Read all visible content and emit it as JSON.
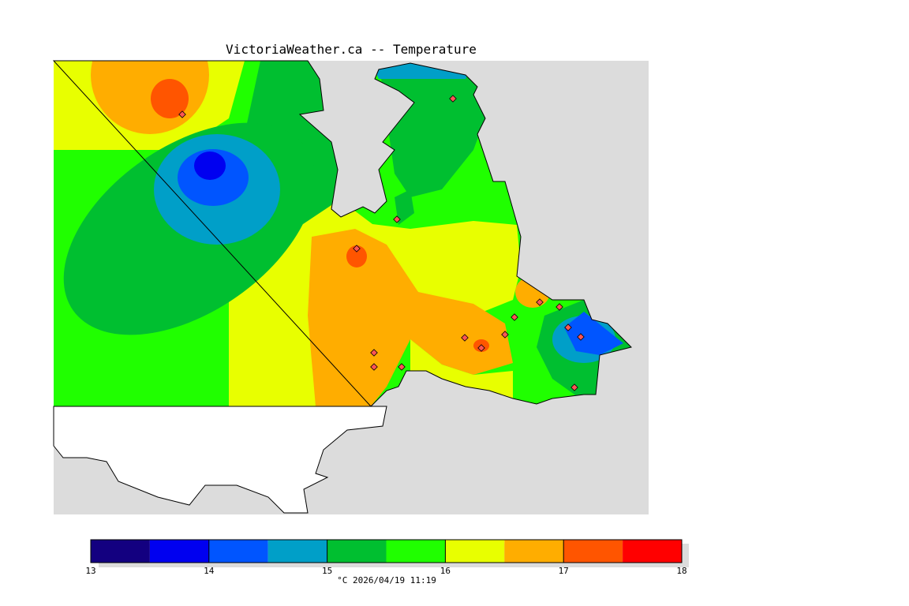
{
  "title": "VictoriaWeather.ca -- Temperature",
  "legend": {
    "unit_caption": "°C  2026/04/19 11:19",
    "ticks": [
      "13",
      "14",
      "15",
      "16",
      "17",
      "18"
    ],
    "bins": [
      {
        "from": 13.0,
        "to": 13.5,
        "color": "#130080"
      },
      {
        "from": 13.5,
        "to": 14.0,
        "color": "#0000f0"
      },
      {
        "from": 14.0,
        "to": 14.5,
        "color": "#0055ff"
      },
      {
        "from": 14.5,
        "to": 15.0,
        "color": "#009fc8"
      },
      {
        "from": 15.0,
        "to": 15.5,
        "color": "#00bf30"
      },
      {
        "from": 15.5,
        "to": 16.0,
        "color": "#20ff00"
      },
      {
        "from": 16.0,
        "to": 16.5,
        "color": "#e8ff00"
      },
      {
        "from": 16.5,
        "to": 17.0,
        "color": "#ffad00"
      },
      {
        "from": 17.0,
        "to": 17.5,
        "color": "#ff5500"
      },
      {
        "from": 17.5,
        "to": 18.0,
        "color": "#ff0000"
      }
    ]
  },
  "colors": {
    "water": "#dcdcdc",
    "land_outside": "#ffffff"
  }
}
